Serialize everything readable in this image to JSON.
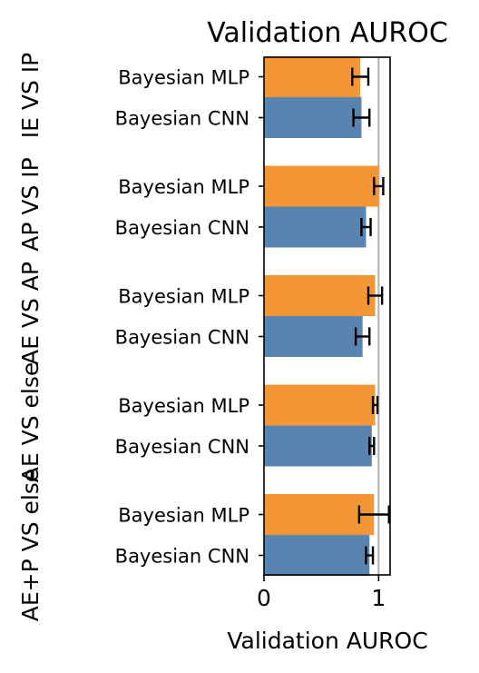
{
  "chart_data": {
    "type": "bar",
    "orientation": "horizontal",
    "title": "Validation AUROC",
    "xlabel": "Validation AUROC",
    "xlim": [
      0,
      1.1
    ],
    "xticks": [
      "0",
      "1"
    ],
    "reference_line_x": 1,
    "groups": [
      "IE VS IP",
      "AP VS IP",
      "AE VS AP",
      "AE VS else",
      "AE+P VS else"
    ],
    "series": [
      {
        "name": "Bayesian MLP",
        "color": "#f39636",
        "values": [
          0.84,
          1.0,
          0.97,
          0.97,
          0.96
        ],
        "errors": [
          0.07,
          0.04,
          0.06,
          0.02,
          0.13
        ]
      },
      {
        "name": "Bayesian CNN",
        "color": "#5a84b0",
        "values": [
          0.85,
          0.89,
          0.86,
          0.94,
          0.92
        ],
        "errors": [
          0.07,
          0.04,
          0.06,
          0.02,
          0.03
        ]
      }
    ],
    "grid": false,
    "legend": "none"
  }
}
